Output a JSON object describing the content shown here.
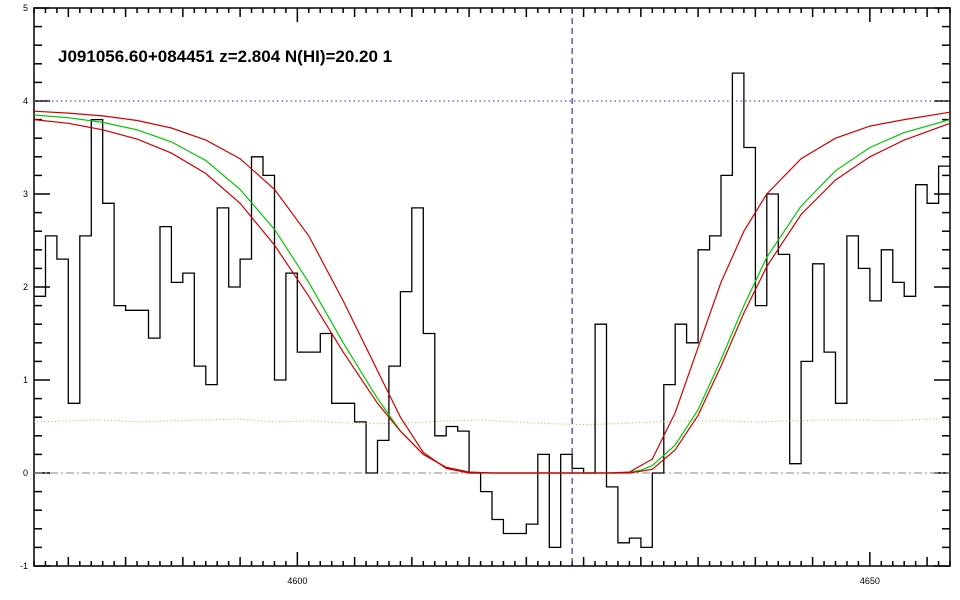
{
  "chart_data": {
    "type": "line",
    "title": "J091056.60+084451 z=2.804 N(HI)=20.20 1",
    "xlabel": "",
    "ylabel": "",
    "xlim": [
      4577,
      4657
    ],
    "ylim": [
      -1,
      5
    ],
    "grid": false,
    "x_ticks": [
      4600,
      4650
    ],
    "y_ticks": [
      -1,
      0,
      1,
      2,
      3,
      4,
      5
    ],
    "reference_lines": {
      "continuum": 4.0,
      "zero": 0.0,
      "line_center": 4624.0,
      "continuum_color": "#5050d0",
      "zero_color": "#888888",
      "center_color": "#3030c0"
    },
    "series": [
      {
        "style": "step",
        "color": "#000000",
        "x": [
          4577.5,
          4578.5,
          4579.5,
          4580.5,
          4581.5,
          4582.5,
          4583.5,
          4584.5,
          4585.5,
          4586.5,
          4587.5,
          4588.5,
          4589.5,
          4590.5,
          4591.5,
          4592.5,
          4593.5,
          4594.5,
          4595.5,
          4596.5,
          4597.5,
          4598.5,
          4599.5,
          4600.5,
          4601.5,
          4602.5,
          4603.5,
          4604.5,
          4605.5,
          4606.5,
          4607.5,
          4608.5,
          4609.5,
          4610.5,
          4611.5,
          4612.5,
          4613.5,
          4614.5,
          4615.5,
          4616.5,
          4617.5,
          4618.5,
          4619.5,
          4620.5,
          4621.5,
          4622.5,
          4623.5,
          4624.5,
          4625.5,
          4626.5,
          4627.5,
          4628.5,
          4629.5,
          4630.5,
          4631.5,
          4632.5,
          4633.5,
          4634.5,
          4635.5,
          4636.5,
          4637.5,
          4638.5,
          4639.5,
          4640.5,
          4641.5,
          4642.5,
          4643.5,
          4644.5,
          4645.5,
          4646.5,
          4647.5,
          4648.5,
          4649.5,
          4650.5,
          4651.5,
          4652.5,
          4653.5,
          4654.5,
          4655.5,
          4656.5
        ],
        "y": [
          1.9,
          2.55,
          2.3,
          0.75,
          2.55,
          3.8,
          2.9,
          1.8,
          1.75,
          1.75,
          1.45,
          2.65,
          2.05,
          2.15,
          1.15,
          0.95,
          2.85,
          2.0,
          2.3,
          3.4,
          3.2,
          1.0,
          2.15,
          1.3,
          1.3,
          1.5,
          0.75,
          0.75,
          0.55,
          0.0,
          0.35,
          1.15,
          1.95,
          2.85,
          1.5,
          0.4,
          0.5,
          0.45,
          0.0,
          -0.2,
          -0.5,
          -0.65,
          -0.65,
          -0.55,
          0.2,
          -0.8,
          0.2,
          0.05,
          0.0,
          1.6,
          -0.15,
          -0.75,
          -0.7,
          -0.8,
          0.0,
          0.95,
          1.6,
          1.4,
          2.4,
          2.55,
          3.2,
          4.3,
          3.5,
          1.8,
          3.0,
          2.35,
          0.1,
          1.2,
          2.25,
          1.3,
          0.75,
          2.55,
          2.2,
          1.85,
          2.4,
          2.05,
          1.9,
          3.1,
          2.9,
          3.3
        ]
      },
      {
        "style": "dotted",
        "color": "#e0a030",
        "x": [
          4577,
          4580,
          4583,
          4586,
          4589,
          4592,
          4595,
          4598,
          4601,
          4604,
          4607,
          4610,
          4613,
          4616,
          4619,
          4622,
          4625,
          4628,
          4631,
          4634,
          4637,
          4640,
          4643,
          4646,
          4649,
          4652,
          4655,
          4657
        ],
        "y": [
          0.55,
          0.56,
          0.57,
          0.55,
          0.56,
          0.57,
          0.58,
          0.55,
          0.56,
          0.54,
          0.53,
          0.54,
          0.56,
          0.57,
          0.55,
          0.53,
          0.52,
          0.53,
          0.55,
          0.56,
          0.56,
          0.55,
          0.56,
          0.57,
          0.57,
          0.56,
          0.58,
          0.58
        ]
      },
      {
        "style": "line",
        "color": "#00c800",
        "x": [
          4577,
          4580,
          4583,
          4586,
          4589,
          4592,
          4595,
          4598,
          4601,
          4604,
          4607,
          4609,
          4611,
          4613,
          4615,
          4617,
          4619,
          4620,
          4621,
          4622,
          4623,
          4624,
          4625,
          4626,
          4627,
          4628,
          4629,
          4630,
          4631,
          4633,
          4635,
          4637,
          4639,
          4641,
          4644,
          4647,
          4650,
          4653,
          4657
        ],
        "y": [
          3.85,
          3.82,
          3.77,
          3.69,
          3.56,
          3.36,
          3.05,
          2.62,
          2.05,
          1.4,
          0.8,
          0.45,
          0.2,
          0.06,
          0.01,
          0.0,
          0.0,
          0.0,
          0.0,
          0.0,
          0.0,
          0.0,
          0.0,
          0.0,
          0.0,
          0.0,
          0.01,
          0.03,
          0.08,
          0.3,
          0.68,
          1.22,
          1.8,
          2.32,
          2.87,
          3.25,
          3.5,
          3.66,
          3.8
        ]
      },
      {
        "style": "line",
        "color": "#d00000",
        "x": [
          4577,
          4580,
          4583,
          4586,
          4589,
          4592,
          4595,
          4598,
          4601,
          4604,
          4607,
          4609,
          4611,
          4613,
          4615,
          4617,
          4619,
          4621,
          4623,
          4625,
          4627,
          4629,
          4631,
          4633,
          4635,
          4637,
          4639,
          4641,
          4644,
          4647,
          4650,
          4653,
          4657
        ],
        "y": [
          3.89,
          3.87,
          3.84,
          3.79,
          3.71,
          3.58,
          3.38,
          3.05,
          2.55,
          1.85,
          1.1,
          0.6,
          0.22,
          0.05,
          0.0,
          0.0,
          0.0,
          0.0,
          0.0,
          0.0,
          0.0,
          0.01,
          0.15,
          0.65,
          1.35,
          2.05,
          2.6,
          3.0,
          3.38,
          3.6,
          3.73,
          3.8,
          3.88
        ]
      },
      {
        "style": "line",
        "color": "#d00000",
        "x": [
          4577,
          4580,
          4583,
          4586,
          4589,
          4592,
          4595,
          4598,
          4601,
          4604,
          4607,
          4609,
          4611,
          4613,
          4615,
          4617,
          4619,
          4621,
          4623,
          4625,
          4627,
          4629,
          4631,
          4633,
          4635,
          4637,
          4639,
          4641,
          4644,
          4647,
          4650,
          4653,
          4657
        ],
        "y": [
          3.8,
          3.76,
          3.69,
          3.59,
          3.44,
          3.22,
          2.9,
          2.45,
          1.9,
          1.3,
          0.75,
          0.45,
          0.2,
          0.06,
          0.01,
          0.0,
          0.0,
          0.0,
          0.0,
          0.0,
          0.0,
          0.0,
          0.04,
          0.25,
          0.62,
          1.15,
          1.72,
          2.22,
          2.78,
          3.15,
          3.4,
          3.58,
          3.76
        ]
      }
    ]
  }
}
